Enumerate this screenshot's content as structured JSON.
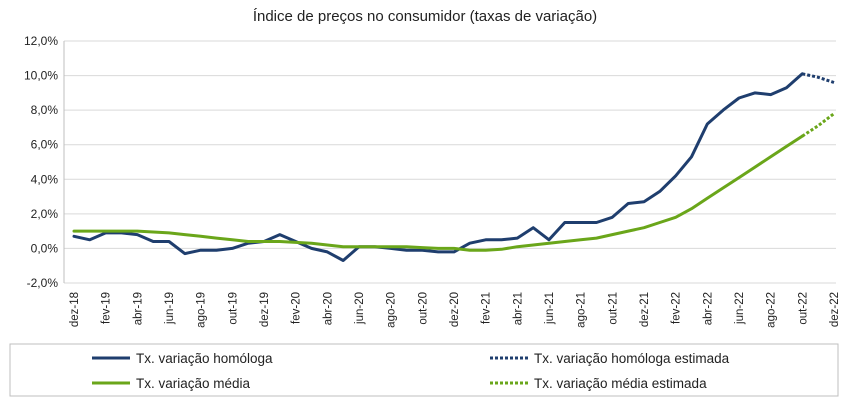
{
  "chart_data": {
    "type": "line",
    "title": "Índice de preços no consumidor  (taxas  de variação)",
    "xlabel": "",
    "ylabel": "",
    "ylim": [
      -2,
      12
    ],
    "y_ticks": [
      -2,
      0,
      2,
      4,
      6,
      8,
      10,
      12
    ],
    "y_tick_labels": [
      "-2,0%",
      "0,0%",
      "2,0%",
      "4,0%",
      "6,0%",
      "8,0%",
      "10,0%",
      "12,0%"
    ],
    "categories": [
      "dez-18",
      "jan-19",
      "fev-19",
      "mar-19",
      "abr-19",
      "mai-19",
      "jun-19",
      "jul-19",
      "ago-19",
      "set-19",
      "out-19",
      "nov-19",
      "dez-19",
      "jan-20",
      "fev-20",
      "mar-20",
      "abr-20",
      "mai-20",
      "jun-20",
      "jul-20",
      "ago-20",
      "set-20",
      "out-20",
      "nov-20",
      "dez-20",
      "jan-21",
      "fev-21",
      "mar-21",
      "abr-21",
      "mai-21",
      "jun-21",
      "jul-21",
      "ago-21",
      "set-21",
      "out-21",
      "nov-21",
      "dez-21",
      "jan-22",
      "fev-22",
      "mar-22",
      "abr-22",
      "mai-22",
      "jun-22",
      "jul-22",
      "ago-22",
      "set-22",
      "out-22",
      "nov-22",
      "dez-22"
    ],
    "x_tick_labels": [
      "dez-18",
      "fev-19",
      "abr-19",
      "jun-19",
      "ago-19",
      "out-19",
      "dez-19",
      "fev-20",
      "abr-20",
      "jun-20",
      "ago-20",
      "out-20",
      "dez-20",
      "fev-21",
      "abr-21",
      "jun-21",
      "ago-21",
      "out-21",
      "dez-21",
      "fev-22",
      "abr-22",
      "jun-22",
      "ago-22",
      "out-22",
      "dez-22"
    ],
    "series": [
      {
        "name": "Tx. variação homóloga",
        "color": "#1f3e6e",
        "style": "solid",
        "values": [
          0.7,
          0.5,
          0.9,
          0.9,
          0.8,
          0.4,
          0.4,
          -0.3,
          -0.1,
          -0.1,
          0.0,
          0.3,
          0.4,
          0.8,
          0.4,
          0.0,
          -0.2,
          -0.7,
          0.1,
          0.1,
          0.0,
          -0.1,
          -0.1,
          -0.2,
          -0.2,
          0.3,
          0.5,
          0.5,
          0.6,
          1.2,
          0.5,
          1.5,
          1.5,
          1.5,
          1.8,
          2.6,
          2.7,
          3.3,
          4.2,
          5.3,
          7.2,
          8.0,
          8.7,
          9.0,
          8.9,
          9.3,
          10.1,
          null,
          null
        ]
      },
      {
        "name": "Tx. variação homóloga estimada",
        "color": "#1f3e6e",
        "style": "dotted",
        "values": [
          null,
          null,
          null,
          null,
          null,
          null,
          null,
          null,
          null,
          null,
          null,
          null,
          null,
          null,
          null,
          null,
          null,
          null,
          null,
          null,
          null,
          null,
          null,
          null,
          null,
          null,
          null,
          null,
          null,
          null,
          null,
          null,
          null,
          null,
          null,
          null,
          null,
          null,
          null,
          null,
          null,
          null,
          null,
          null,
          null,
          null,
          10.1,
          9.9,
          9.6
        ]
      },
      {
        "name": "Tx. variação média",
        "color": "#6aa61a",
        "style": "solid",
        "values": [
          1.0,
          1.0,
          1.0,
          1.0,
          1.0,
          0.95,
          0.9,
          0.8,
          0.7,
          0.6,
          0.5,
          0.4,
          0.4,
          0.4,
          0.35,
          0.3,
          0.2,
          0.1,
          0.1,
          0.1,
          0.1,
          0.1,
          0.05,
          0.0,
          0.0,
          -0.1,
          -0.1,
          -0.05,
          0.1,
          0.2,
          0.3,
          0.4,
          0.5,
          0.6,
          0.8,
          1.0,
          1.2,
          1.5,
          1.8,
          2.3,
          2.9,
          3.5,
          4.1,
          4.7,
          5.3,
          5.9,
          6.5,
          null,
          null
        ]
      },
      {
        "name": "Tx. variação média  estimada",
        "color": "#6aa61a",
        "style": "dotted",
        "values": [
          null,
          null,
          null,
          null,
          null,
          null,
          null,
          null,
          null,
          null,
          null,
          null,
          null,
          null,
          null,
          null,
          null,
          null,
          null,
          null,
          null,
          null,
          null,
          null,
          null,
          null,
          null,
          null,
          null,
          null,
          null,
          null,
          null,
          null,
          null,
          null,
          null,
          null,
          null,
          null,
          null,
          null,
          null,
          null,
          null,
          null,
          6.5,
          7.1,
          7.8
        ]
      }
    ],
    "legend": {
      "position": "bottom",
      "items": [
        {
          "label": "Tx. variação homóloga",
          "color": "#1f3e6e",
          "style": "solid"
        },
        {
          "label": "Tx. variação homóloga estimada",
          "color": "#1f3e6e",
          "style": "dotted"
        },
        {
          "label": "Tx. variação média",
          "color": "#6aa61a",
          "style": "solid"
        },
        {
          "label": "Tx. variação média  estimada",
          "color": "#6aa61a",
          "style": "dotted"
        }
      ]
    },
    "grid": true
  }
}
